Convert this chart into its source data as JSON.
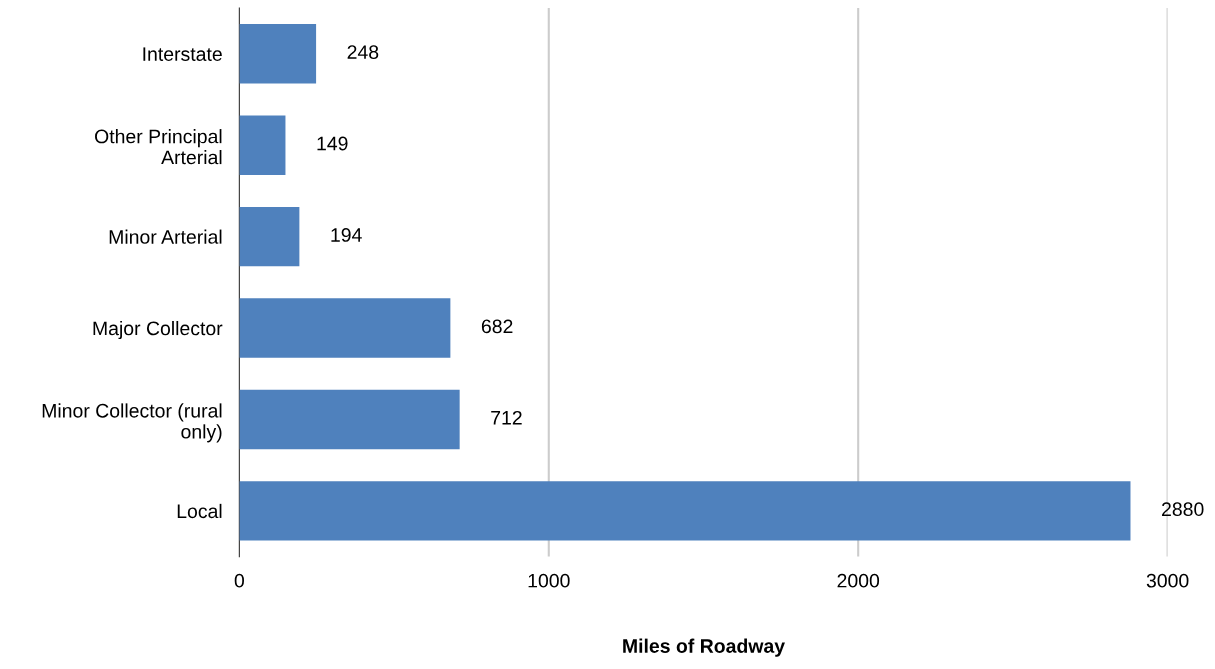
{
  "chart_data": {
    "type": "bar",
    "orientation": "horizontal",
    "xlabel": "Miles of Roadway",
    "categories": [
      "Interstate",
      "Other Principal\nArterial",
      "Minor Arterial",
      "Major Collector",
      "Minor Collector (rural\nonly)",
      "Local"
    ],
    "values": [
      248,
      149,
      194,
      682,
      712,
      2880
    ],
    "color": "#4f81bd",
    "xlim": [
      0,
      3000
    ],
    "xticks": [
      0,
      1000,
      2000,
      3000
    ],
    "grid": "x",
    "data_labels": true,
    "legend": false
  }
}
